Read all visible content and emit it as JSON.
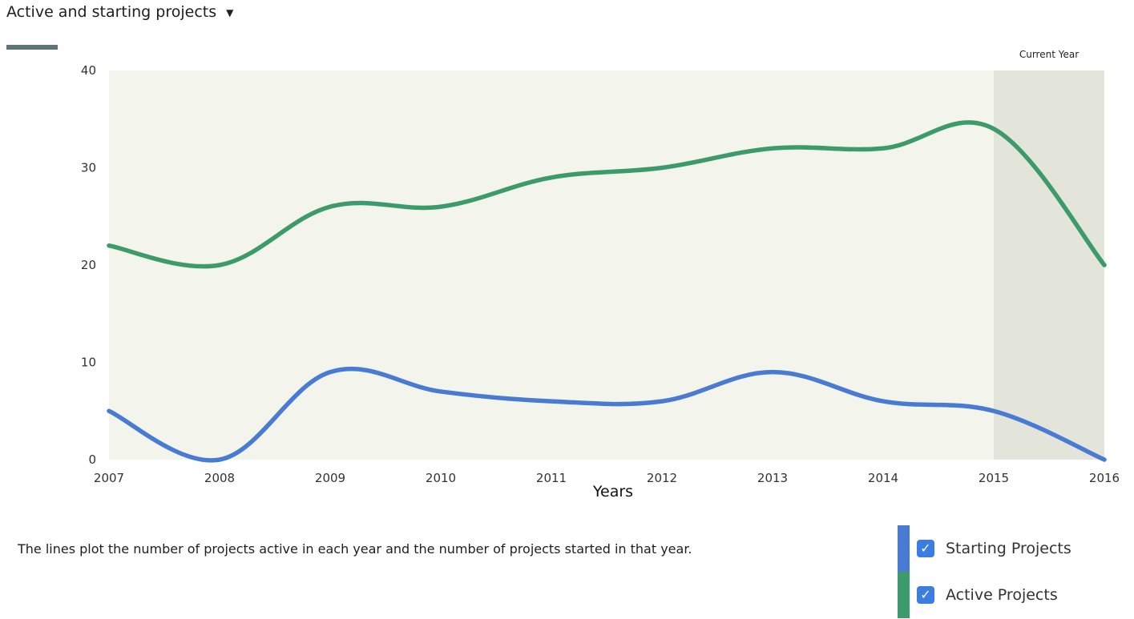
{
  "header": {
    "dropdown_label": "Active and starting projects",
    "caret_icon": "caret-down-icon"
  },
  "caption": "The lines plot the number of projects active in each year and the number of projects started in that year.",
  "band": {
    "label": "Current Year",
    "from": 2015,
    "to": 2016
  },
  "colors": {
    "plot_background": "#f3f4ec",
    "band_background": "#e3e4da",
    "starting": "#4a7bd2",
    "active": "#3d9a6a",
    "checkbox": "#3b7de0"
  },
  "legend": [
    {
      "label": "Starting Projects",
      "color": "#4a7bd2",
      "checked": true
    },
    {
      "label": "Active Projects",
      "color": "#3d9a6a",
      "checked": true
    }
  ],
  "chart_data": {
    "type": "line",
    "x": [
      2007,
      2008,
      2009,
      2010,
      2011,
      2012,
      2013,
      2014,
      2015,
      2016
    ],
    "series": [
      {
        "name": "Active Projects",
        "values": [
          22,
          20,
          26,
          26,
          29,
          30,
          32,
          32,
          34,
          20
        ]
      },
      {
        "name": "Starting Projects",
        "values": [
          5,
          0,
          9,
          7,
          6,
          6,
          9,
          6,
          5,
          0
        ]
      }
    ],
    "xlabel": "Years",
    "ylabel": "",
    "ylim": [
      0,
      40
    ],
    "yticks": [
      0,
      10,
      20,
      30,
      40
    ],
    "grid": false,
    "legend_position": "bottom-right"
  }
}
